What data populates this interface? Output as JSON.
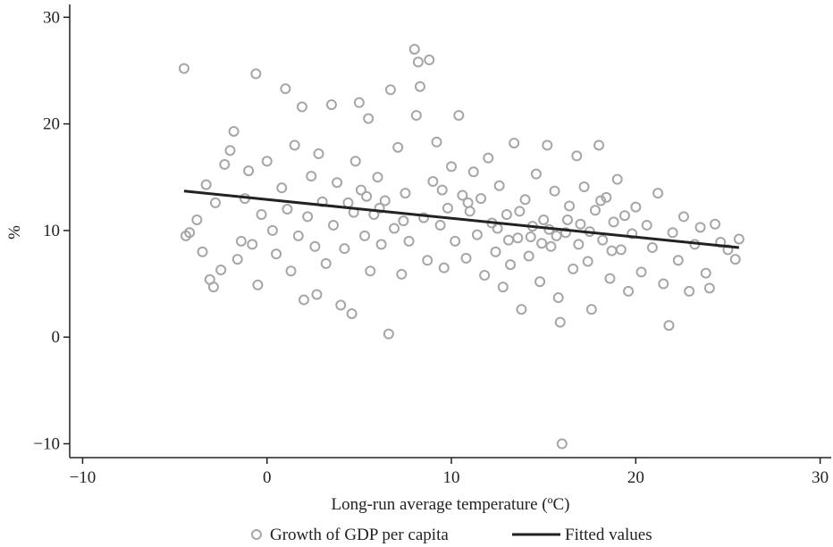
{
  "chart_data": {
    "type": "scatter",
    "xlabel": "Long-run average temperature (ºC)",
    "ylabel": "%",
    "xlim": [
      -10.7,
      30.6
    ],
    "ylim": [
      -11.3,
      31.2
    ],
    "xticks": [
      {
        "value": -10,
        "label": "−10"
      },
      0,
      10,
      20,
      30
    ],
    "yticks": [
      {
        "value": -10,
        "label": "−10"
      },
      0,
      10,
      20,
      30
    ],
    "grid": false,
    "legend": "bottom",
    "series": [
      {
        "name": "Growth of GDP per capita",
        "color": "#a6a6a6",
        "type": "scatter",
        "x": [
          -4.5,
          -4.4,
          -4.2,
          -3.8,
          -3.5,
          -3.3,
          -3.1,
          -2.9,
          -2.8,
          -2.5,
          -2.3,
          -2,
          -1.8,
          -1.6,
          -1.4,
          -1.2,
          -1,
          -0.8,
          -0.6,
          -0.5,
          -0.3,
          0,
          0.3,
          0.5,
          0.8,
          1,
          1.1,
          1.3,
          1.5,
          1.7,
          1.9,
          2,
          2.2,
          2.4,
          2.6,
          2.7,
          2.8,
          3,
          3.2,
          3.5,
          3.6,
          3.8,
          4,
          4.2,
          4.4,
          4.6,
          4.8,
          5,
          5.1,
          5.3,
          5.5,
          5.6,
          5.8,
          6,
          6.2,
          6.4,
          6.6,
          6.7,
          6.9,
          7.1,
          7.3,
          7.5,
          7.7,
          8,
          8.1,
          8.2,
          8.3,
          8.5,
          8.7,
          8.8,
          9,
          9.2,
          9.4,
          9.6,
          9.8,
          10,
          10.2,
          10.4,
          10.6,
          10.8,
          11,
          11.2,
          11.4,
          11.6,
          11.8,
          12,
          12.2,
          12.4,
          12.6,
          12.8,
          13,
          13.2,
          13.4,
          13.6,
          13.8,
          14,
          14.2,
          14.4,
          14.6,
          14.8,
          15,
          15.2,
          15.4,
          15.6,
          15.8,
          15.9,
          16,
          16.2,
          16.4,
          16.6,
          16.8,
          17,
          17.2,
          17.4,
          17.6,
          17.8,
          18,
          18.2,
          18.4,
          18.6,
          18.8,
          19,
          19.2,
          19.4,
          19.6,
          19.8,
          20,
          20.3,
          20.6,
          20.9,
          21.2,
          21.5,
          21.8,
          22,
          22.3,
          22.6,
          22.9,
          23.2,
          23.5,
          23.8,
          24,
          24.3,
          24.6,
          25,
          25.4,
          25.6,
          12.5,
          13.1,
          13.7,
          14.3,
          14.9,
          15.3,
          15.7,
          16.3,
          16.9,
          17.5,
          18.1,
          18.7,
          5.4,
          6.1,
          4.7,
          7.4,
          9.5,
          10.9
        ],
        "values": [
          25.2,
          9.5,
          9.8,
          11,
          8,
          14.3,
          5.4,
          4.7,
          12.6,
          6.3,
          16.2,
          17.5,
          19.3,
          7.3,
          9,
          13,
          15.6,
          8.7,
          24.7,
          4.9,
          11.5,
          16.5,
          10,
          7.8,
          14,
          23.3,
          12,
          6.2,
          18,
          9.5,
          21.6,
          3.5,
          11.3,
          15.1,
          8.5,
          4,
          17.2,
          12.7,
          6.9,
          21.8,
          10.5,
          14.5,
          3,
          8.3,
          12.6,
          2.2,
          16.5,
          22,
          13.8,
          9.5,
          20.5,
          6.2,
          11.5,
          15,
          8.7,
          12.8,
          0.3,
          23.2,
          10.2,
          17.8,
          5.9,
          13.5,
          9,
          27,
          20.8,
          25.8,
          23.5,
          11.2,
          7.2,
          26,
          14.6,
          18.3,
          10.5,
          6.5,
          12.1,
          16,
          9,
          20.8,
          13.3,
          7.4,
          11.8,
          15.5,
          9.6,
          13,
          5.8,
          16.8,
          10.7,
          8,
          14.2,
          4.7,
          11.5,
          6.8,
          18.2,
          9.3,
          2.6,
          12.9,
          7.6,
          10.4,
          15.3,
          5.2,
          11,
          18,
          8.5,
          13.7,
          3.7,
          1.4,
          -10,
          9.8,
          12.3,
          6.4,
          17,
          10.6,
          14.1,
          7.1,
          2.6,
          11.9,
          18,
          9.1,
          13.1,
          5.5,
          10.8,
          14.8,
          8.2,
          11.4,
          4.3,
          9.7,
          12.2,
          6.1,
          10.5,
          8.4,
          13.5,
          5,
          1.1,
          9.8,
          7.2,
          11.3,
          4.3,
          8.7,
          10.3,
          6,
          4.6,
          10.6,
          8.9,
          8.2,
          7.3,
          9.2,
          10.2,
          9.1,
          11.8,
          9.4,
          8.8,
          10.1,
          9.5,
          11,
          8.7,
          9.9,
          12.8,
          8.1,
          13.2,
          12.1,
          11.7,
          10.9,
          13.8,
          12.6
        ]
      },
      {
        "name": "Fitted values",
        "color": "#222222",
        "type": "line",
        "x": [
          -4.5,
          25.6
        ],
        "values": [
          13.7,
          8.4
        ]
      }
    ]
  }
}
